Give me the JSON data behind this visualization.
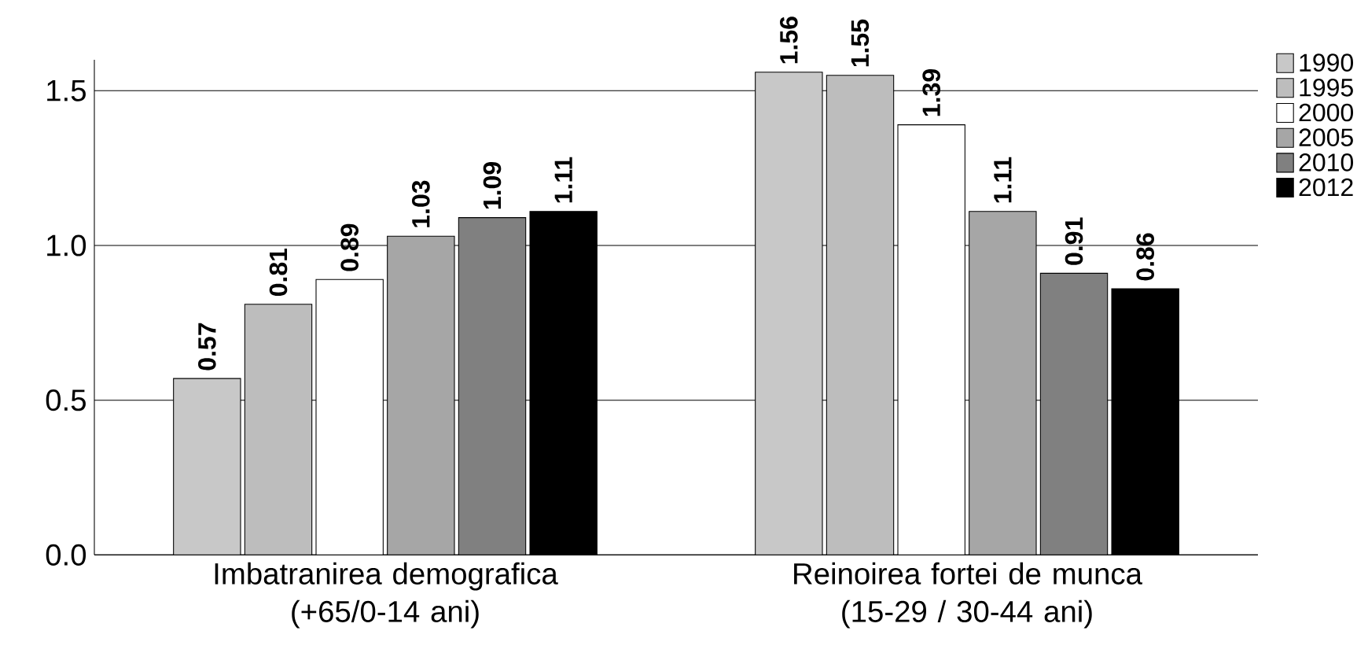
{
  "chart_data": {
    "type": "bar",
    "categories": [
      "Imbatranirea demografica (+65/0-14 ani)",
      "Reinoirea fortei de munca (15-29 / 30-44 ani)"
    ],
    "series": [
      {
        "name": "1990",
        "color": "#c8c8c8",
        "values": [
          0.57,
          1.56
        ]
      },
      {
        "name": "1995",
        "color": "#bdbdbd",
        "values": [
          0.81,
          1.55
        ]
      },
      {
        "name": "2000",
        "color": "#ffffff",
        "values": [
          0.89,
          1.39
        ]
      },
      {
        "name": "2005",
        "color": "#a6a6a6",
        "values": [
          1.03,
          1.11
        ]
      },
      {
        "name": "2010",
        "color": "#808080",
        "values": [
          1.09,
          0.91
        ]
      },
      {
        "name": "2012",
        "color": "#000000",
        "values": [
          1.11,
          0.86
        ]
      }
    ],
    "ylim": [
      0,
      1.6
    ],
    "yticks": [
      {
        "value": 0,
        "label": "0.0"
      },
      {
        "value": 0.5,
        "label": "0.5"
      },
      {
        "value": 1,
        "label": "1.0"
      },
      {
        "value": 1.5,
        "label": "1.5"
      }
    ],
    "grid": "y",
    "legend": "top right",
    "data_labels": true
  }
}
